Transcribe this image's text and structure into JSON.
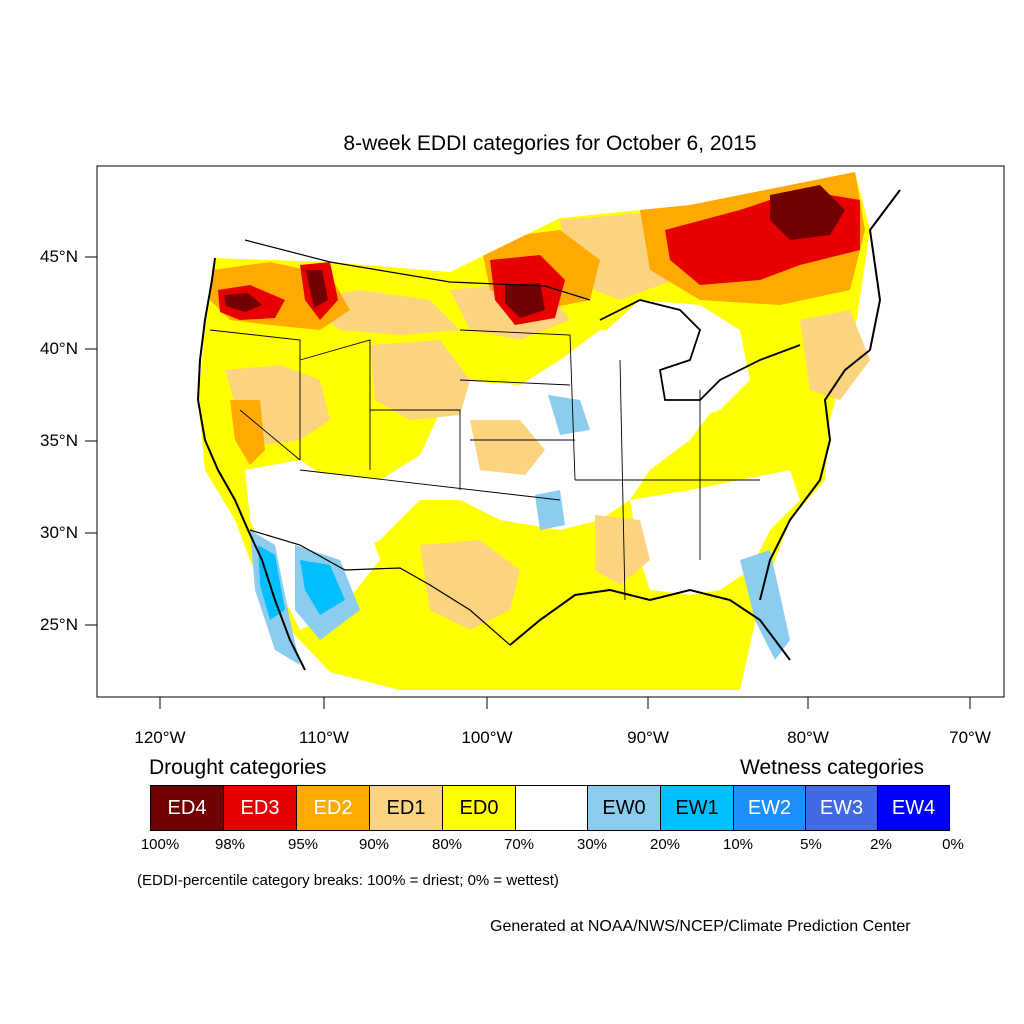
{
  "title": "8-week EDDI categories for October 6, 2015",
  "lat_labels": [
    "45°N",
    "40°N",
    "35°N",
    "30°N",
    "25°N"
  ],
  "lon_labels": [
    "120°W",
    "110°W",
    "100°W",
    "90°W",
    "80°W",
    "70°W"
  ],
  "legend": {
    "drought_heading": "Drought categories",
    "wetness_heading": "Wetness categories",
    "categories": [
      {
        "label": "ED4",
        "color": "#730000",
        "text_color": "#ffffff"
      },
      {
        "label": "ED3",
        "color": "#e60000",
        "text_color": "#ffffff"
      },
      {
        "label": "ED2",
        "color": "#ffaa00",
        "text_color": "#ffffff"
      },
      {
        "label": "ED1",
        "color": "#fcd37f",
        "text_color": "#000000"
      },
      {
        "label": "ED0",
        "color": "#ffff00",
        "text_color": "#000000"
      },
      {
        "label": "",
        "color": "#ffffff",
        "text_color": "#000000"
      },
      {
        "label": "EW0",
        "color": "#8ccdef",
        "text_color": "#000000"
      },
      {
        "label": "EW1",
        "color": "#00bfff",
        "text_color": "#000000"
      },
      {
        "label": "EW2",
        "color": "#1d90ff",
        "text_color": "#ffffff"
      },
      {
        "label": "EW3",
        "color": "#4169e1",
        "text_color": "#ffffff"
      },
      {
        "label": "EW4",
        "color": "#0000ff",
        "text_color": "#ffffff"
      }
    ],
    "breaks": [
      "100%",
      "98%",
      "95%",
      "90%",
      "80%",
      "70%",
      "30%",
      "20%",
      "10%",
      "5%",
      "2%",
      "0%"
    ],
    "note": "(EDDI-percentile category breaks: 100% = driest; 0% = wettest)"
  },
  "credit": "Generated at NOAA/NWS/NCEP/Climate Prediction Center"
}
